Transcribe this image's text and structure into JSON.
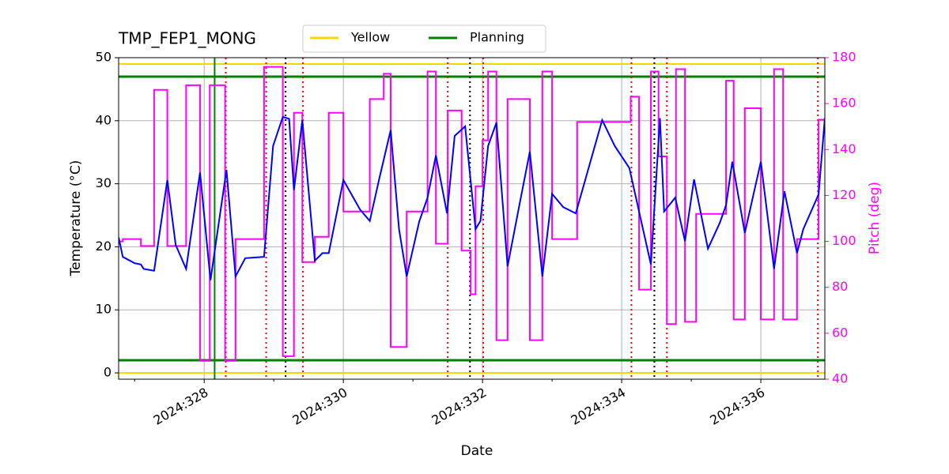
{
  "chart_data": {
    "type": "line",
    "title": "TMP_FEP1_MONG",
    "x_label": "Date",
    "y_label": "Temperature (°C)",
    "y2_label": "Pitch (deg)",
    "y2_color": "#ff00ff",
    "grid": true,
    "xlim": [
      326.77,
      336.92
    ],
    "xticks": [
      {
        "value": 328,
        "label": "2024:328"
      },
      {
        "value": 330,
        "label": "2024:330"
      },
      {
        "value": 332,
        "label": "2024:332"
      },
      {
        "value": 334,
        "label": "2024:334"
      },
      {
        "value": 336,
        "label": "2024:336"
      }
    ],
    "xminorticks": [
      327,
      329,
      331,
      333,
      335
    ],
    "ylim": [
      -1,
      50
    ],
    "yticks": [
      0,
      10,
      20,
      30,
      40,
      50
    ],
    "y2lim": [
      40,
      180
    ],
    "y2ticks": [
      40,
      60,
      80,
      100,
      120,
      140,
      160,
      180
    ],
    "limits": [
      {
        "name": "Yellow",
        "color": "#ffd700",
        "values": [
          0,
          49
        ]
      },
      {
        "name": "Planning",
        "color": "#008000",
        "values": [
          2,
          47
        ]
      }
    ],
    "vlines": [
      {
        "x": 328.15,
        "color": "#008000",
        "style": "solid"
      },
      {
        "x": 328.31,
        "color": "#ff0000",
        "style": "dotted"
      },
      {
        "x": 328.89,
        "color": "#ff0000",
        "style": "dotted"
      },
      {
        "x": 329.17,
        "color": "#000000",
        "style": "dotted"
      },
      {
        "x": 329.42,
        "color": "#ff0000",
        "style": "dotted"
      },
      {
        "x": 331.5,
        "color": "#ff0000",
        "style": "dotted"
      },
      {
        "x": 331.82,
        "color": "#000000",
        "style": "dotted"
      },
      {
        "x": 332.01,
        "color": "#ff0000",
        "style": "dotted"
      },
      {
        "x": 334.14,
        "color": "#ff0000",
        "style": "dotted"
      },
      {
        "x": 334.47,
        "color": "#000000",
        "style": "dotted"
      },
      {
        "x": 334.65,
        "color": "#ff0000",
        "style": "dotted"
      },
      {
        "x": 336.82,
        "color": "#ff0000",
        "style": "dotted"
      }
    ],
    "series": [
      {
        "color": "#0000ff",
        "axis": "y",
        "x": [
          326.77,
          326.83,
          327.0,
          327.09,
          327.13,
          327.28,
          327.47,
          327.59,
          327.74,
          327.94,
          328.09,
          328.32,
          328.45,
          328.59,
          328.86,
          328.99,
          329.13,
          329.22,
          329.29,
          329.41,
          329.59,
          329.7,
          329.79,
          330.0,
          330.24,
          330.38,
          330.52,
          330.68,
          330.8,
          330.91,
          331.09,
          331.21,
          331.33,
          331.49,
          331.6,
          331.75,
          331.9,
          331.97,
          332.08,
          332.2,
          332.36,
          332.54,
          332.68,
          332.86,
          333.0,
          333.16,
          333.34,
          333.72,
          333.9,
          334.11,
          334.42,
          334.55,
          334.61,
          334.77,
          334.91,
          335.04,
          335.24,
          335.41,
          335.5,
          335.59,
          335.77,
          336.0,
          336.19,
          336.34,
          336.52,
          336.61,
          336.83,
          336.92
        ],
        "values": [
          21.5,
          18.4,
          17.4,
          17.2,
          16.5,
          16.2,
          30.6,
          20.3,
          16.5,
          31.8,
          14.7,
          32.2,
          15.3,
          18.2,
          18.4,
          36,
          40.6,
          40.3,
          29,
          40.1,
          17.8,
          19,
          19,
          30.6,
          25.9,
          24.1,
          31,
          38.5,
          22.8,
          15.3,
          24,
          27.8,
          34.5,
          25.3,
          37.6,
          39.1,
          22.8,
          24.1,
          36,
          39.7,
          16.9,
          27.2,
          35.1,
          15.3,
          28.4,
          26.3,
          25.3,
          40.1,
          36,
          32.5,
          17.2,
          40.4,
          25.6,
          27.8,
          20.9,
          30.7,
          19.7,
          23.8,
          26.6,
          33.5,
          22.2,
          33.5,
          16.5,
          28.8,
          19,
          22.8,
          28.3,
          40.4
        ]
      },
      {
        "color": "#ff00ff",
        "axis": "y2",
        "x": [
          326.77,
          326.83,
          326.83,
          327.09,
          327.09,
          327.28,
          327.28,
          327.47,
          327.47,
          327.74,
          327.74,
          327.94,
          327.94,
          328.08,
          328.08,
          328.3,
          328.3,
          328.45,
          328.45,
          328.86,
          328.86,
          329.13,
          329.13,
          329.29,
          329.29,
          329.41,
          329.41,
          329.59,
          329.59,
          329.79,
          329.79,
          330.0,
          330.0,
          330.38,
          330.38,
          330.58,
          330.58,
          330.68,
          330.68,
          330.91,
          330.91,
          331.21,
          331.21,
          331.33,
          331.33,
          331.5,
          331.5,
          331.7,
          331.7,
          331.83,
          331.83,
          331.9,
          331.9,
          332.0,
          332.0,
          332.08,
          332.08,
          332.2,
          332.2,
          332.36,
          332.36,
          332.68,
          332.68,
          332.86,
          332.86,
          333.0,
          333.0,
          333.36,
          333.36,
          334.13,
          334.13,
          334.25,
          334.25,
          334.42,
          334.42,
          334.53,
          334.53,
          334.65,
          334.65,
          334.78,
          334.78,
          334.91,
          334.91,
          335.07,
          335.07,
          335.5,
          335.5,
          335.61,
          335.61,
          335.77,
          335.77,
          336.0,
          336.0,
          336.19,
          336.19,
          336.32,
          336.32,
          336.52,
          336.52,
          336.83,
          336.83,
          336.92
        ],
        "values": [
          100,
          100,
          101,
          101,
          98,
          98,
          166,
          166,
          98,
          98,
          168,
          168,
          48,
          48,
          168,
          168,
          48,
          48,
          101,
          101,
          176,
          176,
          50,
          50,
          156,
          156,
          91,
          91,
          102,
          102,
          156,
          156,
          113,
          113,
          162,
          162,
          173,
          173,
          54,
          54,
          113,
          113,
          174,
          174,
          99,
          99,
          157,
          157,
          96,
          96,
          77,
          77,
          124,
          124,
          144,
          144,
          174,
          174,
          57,
          57,
          162,
          162,
          57,
          57,
          174,
          174,
          101,
          101,
          152,
          152,
          163,
          163,
          79,
          79,
          174,
          174,
          137,
          137,
          64,
          64,
          175,
          175,
          65,
          65,
          112,
          112,
          170,
          170,
          66,
          66,
          158,
          158,
          66,
          66,
          175,
          175,
          66,
          66,
          101,
          101,
          153,
          153
        ]
      }
    ]
  }
}
